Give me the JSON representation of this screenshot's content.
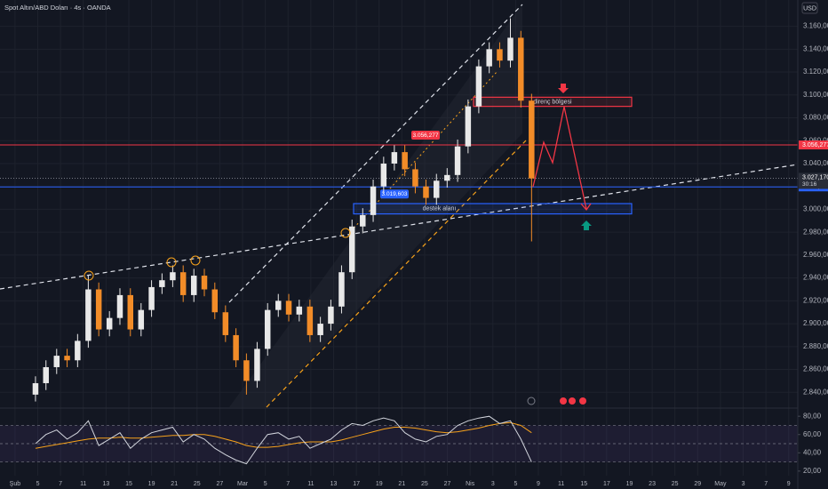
{
  "chart_data": {
    "type": "candlestick",
    "title": "Spot Altın/ABD Doları · 4s · OANDA",
    "currency": "USD",
    "x": [
      0.9,
      1.36,
      1.83,
      2.29,
      2.75,
      3.22,
      3.68,
      4.15,
      4.61,
      5.07,
      5.54,
      6.0,
      6.46,
      6.93,
      7.39,
      7.86,
      8.32,
      8.78,
      9.25,
      9.71,
      10.17,
      10.64,
      11.1,
      11.57,
      12.03,
      12.49,
      12.96,
      13.42,
      13.88,
      14.35,
      14.81,
      15.28,
      15.74,
      16.2,
      16.67,
      17.13,
      17.59,
      18.06,
      18.52,
      18.99,
      19.45,
      19.91,
      20.38,
      20.84,
      21.3,
      21.77,
      22.23,
      22.7
    ],
    "open": [
      2838,
      2848,
      2862,
      2872,
      2868,
      2885,
      2930,
      2895,
      2905,
      2925,
      2895,
      2912,
      2932,
      2938,
      2945,
      2925,
      2942,
      2930,
      2910,
      2890,
      2868,
      2850,
      2878,
      2912,
      2920,
      2908,
      2915,
      2890,
      2900,
      2915,
      2945,
      2985,
      2995,
      3020,
      3040,
      3050,
      3035,
      3020,
      3010,
      3025,
      3030,
      3055,
      3090,
      3125,
      3140,
      3130,
      3150,
      3095
    ],
    "high": [
      2854,
      2868,
      2878,
      2878,
      2891,
      2942,
      2936,
      2911,
      2931,
      2931,
      2918,
      2938,
      2944,
      2951,
      2951,
      2948,
      2948,
      2936,
      2916,
      2896,
      2874,
      2884,
      2918,
      2926,
      2926,
      2921,
      2921,
      2906,
      2921,
      2951,
      2991,
      3001,
      3026,
      3046,
      3056,
      3056,
      3041,
      3026,
      3031,
      3036,
      3061,
      3096,
      3131,
      3146,
      3146,
      3167,
      3156,
      3101
    ],
    "low": [
      2832,
      2842,
      2856,
      2862,
      2862,
      2879,
      2889,
      2889,
      2899,
      2889,
      2889,
      2906,
      2926,
      2932,
      2919,
      2919,
      2924,
      2904,
      2884,
      2862,
      2838,
      2844,
      2872,
      2906,
      2902,
      2902,
      2884,
      2884,
      2894,
      2909,
      2939,
      2979,
      2989,
      3014,
      3034,
      3029,
      3014,
      3004,
      3004,
      3019,
      3024,
      3049,
      3084,
      3119,
      3124,
      3124,
      3089,
      2972
    ],
    "close": [
      2848,
      2862,
      2872,
      2868,
      2885,
      2930,
      2895,
      2905,
      2925,
      2895,
      2912,
      2932,
      2938,
      2945,
      2925,
      2942,
      2930,
      2910,
      2890,
      2868,
      2850,
      2878,
      2912,
      2920,
      2908,
      2915,
      2890,
      2900,
      2915,
      2945,
      2985,
      2995,
      3020,
      3040,
      3050,
      3035,
      3020,
      3010,
      3025,
      3030,
      3055,
      3090,
      3125,
      3140,
      3130,
      3150,
      3095,
      3027
    ],
    "up_color": "#e8e8e8",
    "down_color": "#f28c28",
    "xlim": [
      -0.66,
      34.4
    ],
    "xticks": [
      {
        "value": 0,
        "label": "Şub"
      },
      {
        "value": 1,
        "label": "5"
      },
      {
        "value": 2,
        "label": "7"
      },
      {
        "value": 3,
        "label": "11"
      },
      {
        "value": 4,
        "label": "13"
      },
      {
        "value": 5,
        "label": "15"
      },
      {
        "value": 6,
        "label": "19"
      },
      {
        "value": 7,
        "label": "21"
      },
      {
        "value": 8,
        "label": "25"
      },
      {
        "value": 9,
        "label": "27"
      },
      {
        "value": 10,
        "label": "Mar"
      },
      {
        "value": 11,
        "label": "5"
      },
      {
        "value": 12,
        "label": "7"
      },
      {
        "value": 13,
        "label": "11"
      },
      {
        "value": 14,
        "label": "13"
      },
      {
        "value": 15,
        "label": "17"
      },
      {
        "value": 16,
        "label": "19"
      },
      {
        "value": 17,
        "label": "21"
      },
      {
        "value": 18,
        "label": "25"
      },
      {
        "value": 19,
        "label": "27"
      },
      {
        "value": 20,
        "label": "Nis"
      },
      {
        "value": 21,
        "label": "3"
      },
      {
        "value": 22,
        "label": "5"
      },
      {
        "value": 23,
        "label": "9"
      },
      {
        "value": 24,
        "label": "11"
      },
      {
        "value": 25,
        "label": "15"
      },
      {
        "value": 26,
        "label": "17"
      },
      {
        "value": 27,
        "label": "19"
      },
      {
        "value": 28,
        "label": "23"
      },
      {
        "value": 29,
        "label": "25"
      },
      {
        "value": 30,
        "label": "29"
      },
      {
        "value": 31,
        "label": "May"
      },
      {
        "value": 32,
        "label": "3"
      },
      {
        "value": 33,
        "label": "7"
      },
      {
        "value": 34,
        "label": "9"
      }
    ],
    "ylim": [
      2827,
      3183
    ],
    "yticks": [
      {
        "value": 2840,
        "label": "2.840,000"
      },
      {
        "value": 2860,
        "label": "2.860,000"
      },
      {
        "value": 2880,
        "label": "2.880,000"
      },
      {
        "value": 2900,
        "label": "2.900,000"
      },
      {
        "value": 2920,
        "label": "2.920,000"
      },
      {
        "value": 2940,
        "label": "2.940,000"
      },
      {
        "value": 2960,
        "label": "2.960,000"
      },
      {
        "value": 2980,
        "label": "2.980,000"
      },
      {
        "value": 3000,
        "label": "3.000,000"
      },
      {
        "value": 3020,
        "label": "3.020,000"
      },
      {
        "value": 3040,
        "label": "3.040,000"
      },
      {
        "value": 3060,
        "label": "3.060,000"
      },
      {
        "value": 3080,
        "label": "3.080,000"
      },
      {
        "value": 3100,
        "label": "3.100,000"
      },
      {
        "value": 3120,
        "label": "3.120,000"
      },
      {
        "value": 3140,
        "label": "3.140,000"
      },
      {
        "value": 3160,
        "label": "3.160,000"
      }
    ],
    "grid": true,
    "price_lines": [
      {
        "value": 3056.277,
        "label": "3.056,277",
        "color": "#f23645"
      },
      {
        "value": 3019.603,
        "label": "3.019,603",
        "color": "#2962ff"
      }
    ],
    "current_price": {
      "value": 3027.17,
      "label": "3.027,170",
      "countdown": "30:16"
    },
    "zones": [
      {
        "label": "direnç bölgesi",
        "low": 3090,
        "high": 3098,
        "color": "#f23645"
      },
      {
        "label": "destek alanı",
        "low": 2996,
        "high": 3005,
        "color": "#2962ff"
      }
    ],
    "rsi": {
      "ylim": [
        15,
        86
      ],
      "yticks": [
        {
          "value": 20,
          "label": "20,00"
        },
        {
          "value": 40,
          "label": "40,00"
        },
        {
          "value": 60,
          "label": "60,00"
        },
        {
          "value": 80,
          "label": "80,00"
        }
      ],
      "levels": [
        70,
        50,
        30
      ],
      "color": "#d1d4dc",
      "ma_color": "#f7a21b",
      "values": [
        50,
        60,
        65,
        55,
        62,
        75,
        48,
        55,
        62,
        45,
        55,
        62,
        65,
        68,
        52,
        60,
        55,
        45,
        38,
        32,
        28,
        45,
        60,
        62,
        55,
        58,
        45,
        50,
        55,
        65,
        72,
        70,
        75,
        78,
        75,
        62,
        55,
        52,
        58,
        60,
        70,
        75,
        78,
        80,
        72,
        75,
        55,
        30
      ],
      "ma": [
        45,
        47,
        49,
        51,
        53,
        55,
        56,
        56,
        57,
        56,
        56,
        57,
        58,
        59,
        59,
        60,
        60,
        58,
        55,
        52,
        48,
        46,
        46,
        47,
        49,
        51,
        52,
        52,
        52,
        54,
        57,
        60,
        63,
        66,
        68,
        68,
        67,
        65,
        63,
        62,
        63,
        65,
        67,
        70,
        72,
        73,
        70,
        62
      ]
    }
  }
}
